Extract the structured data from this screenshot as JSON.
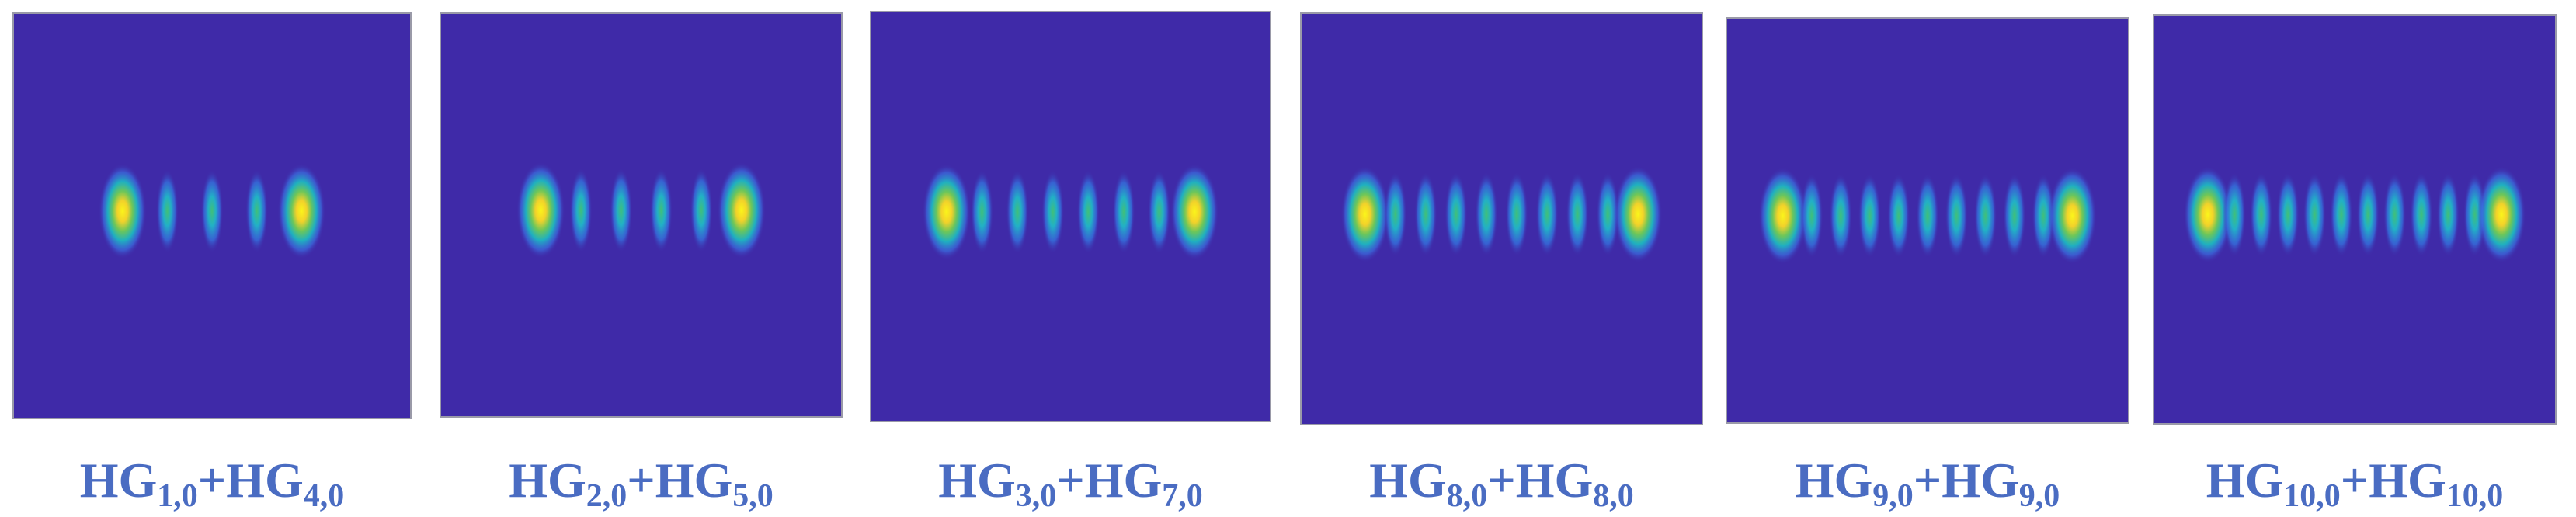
{
  "panels": [
    {
      "terms": [
        {
          "base": "HG",
          "sub": "1,0"
        },
        {
          "base": "HG",
          "sub": "4,0"
        }
      ],
      "operator": "+"
    },
    {
      "terms": [
        {
          "base": "HG",
          "sub": "2,0"
        },
        {
          "base": "HG",
          "sub": "5,0"
        }
      ],
      "operator": "+"
    },
    {
      "terms": [
        {
          "base": "HG",
          "sub": "3,0"
        },
        {
          "base": "HG",
          "sub": "7,0"
        }
      ],
      "operator": "+"
    },
    {
      "terms": [
        {
          "base": "HG",
          "sub": "8,0"
        },
        {
          "base": "HG",
          "sub": "8,0"
        }
      ],
      "operator": "+"
    },
    {
      "terms": [
        {
          "base": "HG",
          "sub": "9,0"
        },
        {
          "base": "HG",
          "sub": "9,0"
        }
      ],
      "operator": "+"
    },
    {
      "terms": [
        {
          "base": "HG",
          "sub": "10,0"
        },
        {
          "base": "HG",
          "sub": "10,0"
        }
      ],
      "operator": "+"
    }
  ]
}
